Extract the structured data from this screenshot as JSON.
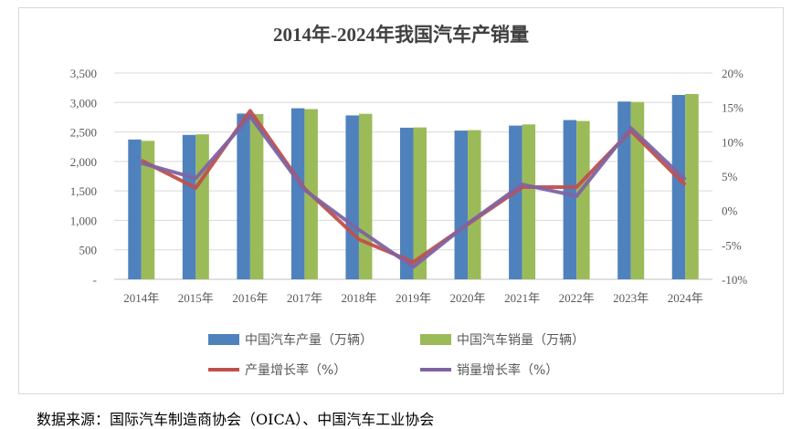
{
  "chart_data": {
    "type": "bar",
    "title": "2014年-2024年我国汽车产销量",
    "categories": [
      "2014年",
      "2015年",
      "2016年",
      "2017年",
      "2018年",
      "2019年",
      "2020年",
      "2021年",
      "2022年",
      "2023年",
      "2024年"
    ],
    "y_left": {
      "ticks": [
        "-",
        "500",
        "1,000",
        "1,500",
        "2,000",
        "2,500",
        "3,000",
        "3,500"
      ],
      "range": [
        0,
        3500
      ]
    },
    "y_right": {
      "ticks": [
        "-10%",
        "-5%",
        "0%",
        "5%",
        "10%",
        "15%",
        "20%"
      ],
      "range": [
        -10,
        20
      ]
    },
    "series": [
      {
        "name": "中国汽车产量（万辆）",
        "type": "bar",
        "axis": "left",
        "color": "#4f81bd",
        "values": [
          2372,
          2450,
          2812,
          2902,
          2781,
          2572,
          2523,
          2608,
          2702,
          3016,
          3128
        ]
      },
      {
        "name": "中国汽车销量（万辆）",
        "type": "bar",
        "axis": "left",
        "color": "#9bbb59",
        "values": [
          2349,
          2460,
          2803,
          2888,
          2808,
          2577,
          2531,
          2628,
          2686,
          3009,
          3144
        ]
      },
      {
        "name": "产量增长率（%）",
        "type": "line",
        "axis": "right",
        "color": "#c0504d",
        "values": [
          7.3,
          3.3,
          14.5,
          3.2,
          -4.2,
          -7.5,
          -2.0,
          3.4,
          3.4,
          11.6,
          3.7
        ]
      },
      {
        "name": "销量增长率（%）",
        "type": "line",
        "axis": "right",
        "color": "#8064a2",
        "values": [
          6.9,
          4.7,
          13.7,
          3.0,
          -2.8,
          -8.2,
          -1.9,
          3.8,
          2.1,
          12.0,
          4.5
        ]
      }
    ],
    "grid": true,
    "legend_placement": "bottom"
  },
  "source": "数据来源：国际汽车制造商协会（OICA）、中国汽车工业协会"
}
